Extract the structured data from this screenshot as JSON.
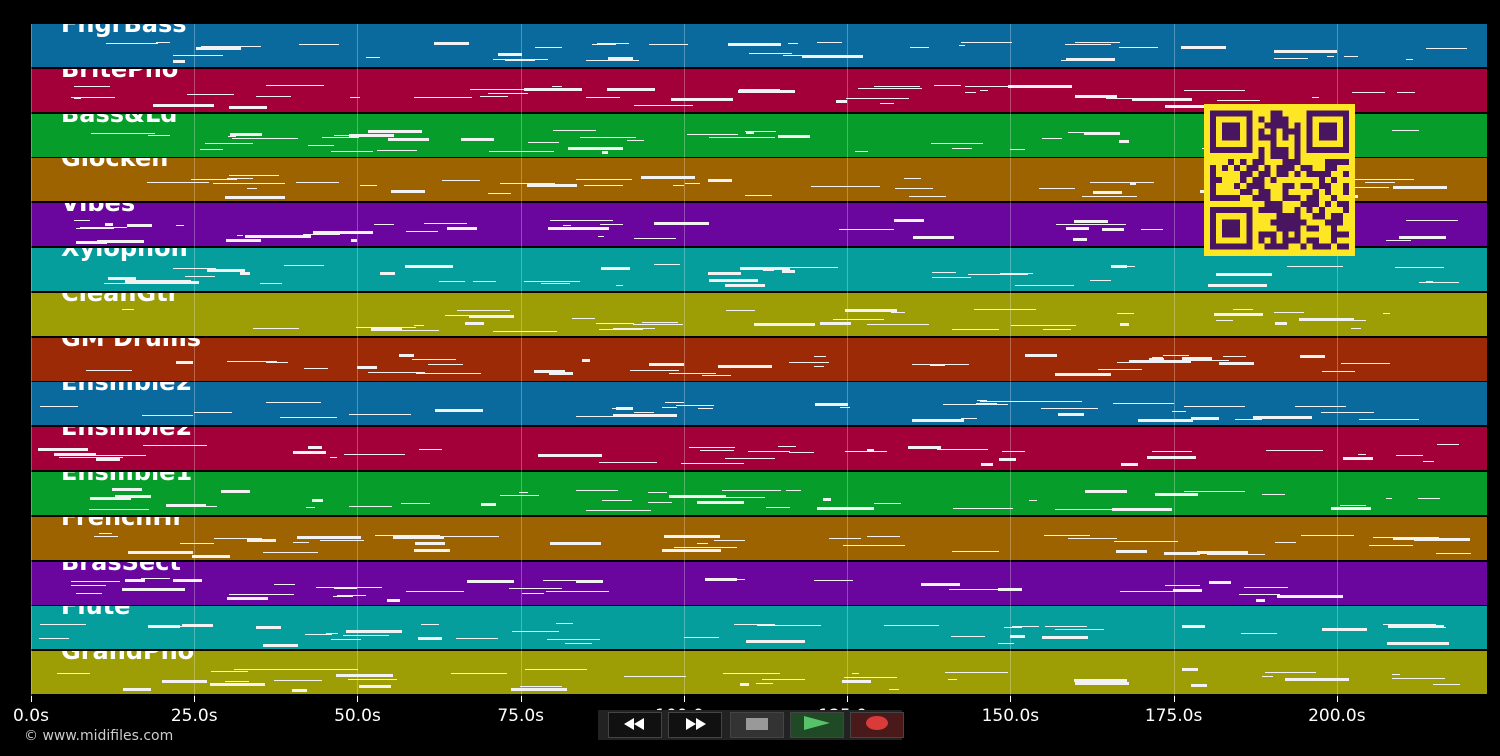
{
  "tracks": [
    {
      "name": "FngrBass",
      "color": "#0a6a9e"
    },
    {
      "name": "BritePno",
      "color": "#a30039"
    },
    {
      "name": "Bass&Ld",
      "color": "#069d2a"
    },
    {
      "name": "Glocken",
      "color": "#9d6300"
    },
    {
      "name": "Vibes",
      "color": "#6a069d"
    },
    {
      "name": "Xylophon",
      "color": "#069d9d"
    },
    {
      "name": "CleanGtr",
      "color": "#9d9d06"
    },
    {
      "name": "GM Drums",
      "color": "#9d2a06"
    },
    {
      "name": "Ensmble2",
      "color": "#0a6a9e"
    },
    {
      "name": "Ensmble2",
      "color": "#a30039"
    },
    {
      "name": "Ensmble1",
      "color": "#069d2a"
    },
    {
      "name": "FrenchHr",
      "color": "#9d6300"
    },
    {
      "name": "BrasSect",
      "color": "#6a069d"
    },
    {
      "name": "Flute",
      "color": "#069d9d"
    },
    {
      "name": "GrandPno",
      "color": "#9d9d06"
    }
  ],
  "timeline": {
    "max_seconds": 223,
    "ticks": [
      {
        "seconds": 0,
        "label": "0.0s"
      },
      {
        "seconds": 25,
        "label": "25.0s"
      },
      {
        "seconds": 50,
        "label": "50.0s"
      },
      {
        "seconds": 75,
        "label": "75.0s"
      },
      {
        "seconds": 100,
        "label": "100.0s"
      },
      {
        "seconds": 125,
        "label": "125.0s"
      },
      {
        "seconds": 150,
        "label": "150.0s"
      },
      {
        "seconds": 175,
        "label": "175.0s"
      },
      {
        "seconds": 200,
        "label": "200.0s"
      }
    ]
  },
  "transport": {
    "rewind_icon": "rewind-icon",
    "fast_forward_icon": "fast-forward-icon",
    "stop_icon": "stop-icon",
    "play_icon": "play-icon",
    "record_icon": "record-icon",
    "colors": {
      "play": "#2e8b3e",
      "record": "#d93b3b",
      "stop": "#999999"
    }
  },
  "qr_code": {
    "icon": "qr-code-icon",
    "fg": "#4a1560",
    "bg": "#fde725"
  },
  "footer": {
    "copyright": "© www.midifiles.com"
  }
}
